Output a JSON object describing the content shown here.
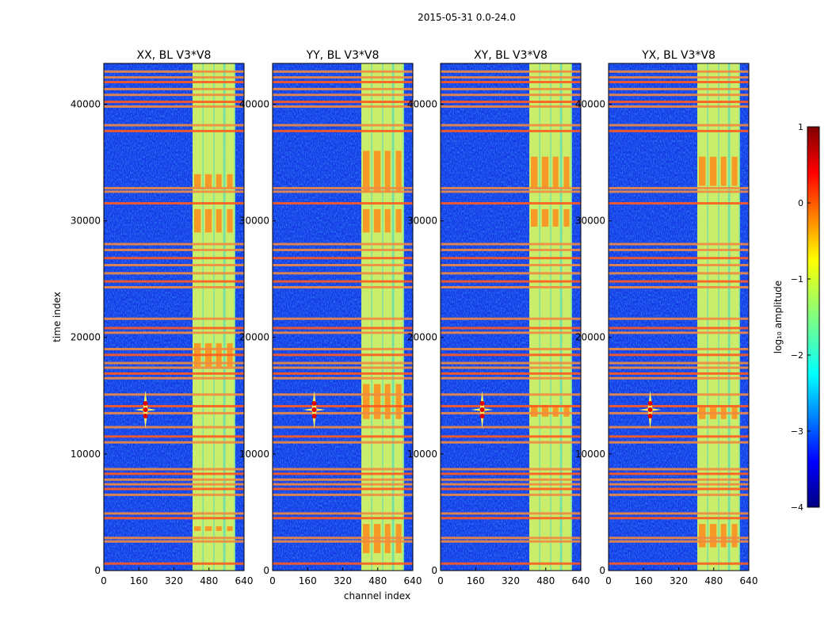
{
  "figure": {
    "suptitle": "2015-05-31 0.0-24.0"
  },
  "chart_data": {
    "type": "heatmap",
    "xlabel": "channel index",
    "ylabel": "time index",
    "xlim": [
      0,
      640
    ],
    "ylim": [
      0,
      43500
    ],
    "x_ticks": [
      0,
      160,
      320,
      480,
      640
    ],
    "y_ticks": [
      0,
      10000,
      20000,
      30000,
      40000
    ],
    "panels": [
      {
        "title": "XX, BL V3*V8",
        "strong_blocks": [
          [
            3400,
            3800
          ],
          [
            17500,
            19500
          ],
          [
            29000,
            31000
          ],
          [
            32800,
            34000
          ]
        ]
      },
      {
        "title": "YY, BL V3*V8",
        "strong_blocks": [
          [
            1500,
            4000
          ],
          [
            13000,
            16000
          ],
          [
            29000,
            31000
          ],
          [
            32500,
            36000
          ]
        ]
      },
      {
        "title": "XY, BL V3*V8",
        "strong_blocks": [
          [
            13200,
            14200
          ],
          [
            29500,
            31000
          ],
          [
            32800,
            35500
          ]
        ]
      },
      {
        "title": "YX, BL V3*V8",
        "strong_blocks": [
          [
            2000,
            4000
          ],
          [
            13000,
            14000
          ],
          [
            33000,
            35500
          ]
        ]
      }
    ],
    "bright_channel_range": [
      405,
      600
    ],
    "bright_channel_columns": [
      [
        405,
        450
      ],
      [
        455,
        500
      ],
      [
        505,
        545
      ],
      [
        555,
        595
      ]
    ],
    "flagged_time_rows": [
      600,
      2500,
      2800,
      4500,
      4900,
      6500,
      7000,
      7400,
      7800,
      8300,
      8700,
      11000,
      11500,
      12300,
      13500,
      14100,
      15100,
      16500,
      16900,
      17400,
      17800,
      18500,
      19000,
      20400,
      20800,
      21600,
      24300,
      24800,
      25500,
      26200,
      26800,
      27500,
      28000,
      31500,
      32500,
      32800,
      37700,
      38200,
      39800,
      40200,
      40800,
      41300,
      41900,
      42300,
      42800
    ],
    "rfi_source": {
      "channel": 190,
      "time": 13800
    },
    "colorbar": {
      "label": "log₁₀ amplitude",
      "range": [
        -4,
        1
      ],
      "ticks": [
        1,
        0,
        -1,
        -2,
        -3,
        -4
      ],
      "tick_labels": [
        "1",
        "0",
        "−1",
        "−2",
        "−3",
        "−4"
      ],
      "colormap": "jet",
      "colors": [
        "#000080",
        "#0000ff",
        "#0080ff",
        "#00ffff",
        "#80ff80",
        "#ffff00",
        "#ff8000",
        "#ff0000",
        "#800000"
      ]
    }
  }
}
